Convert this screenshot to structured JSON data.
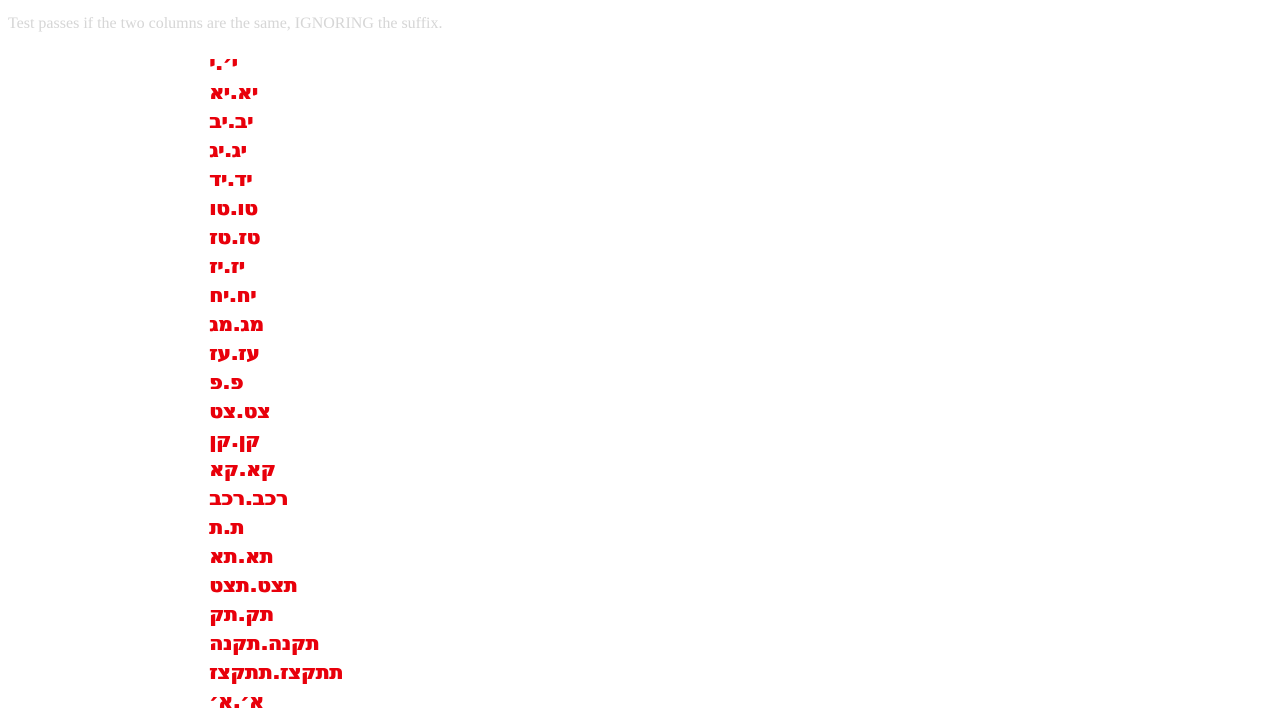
{
  "instructions": "Test passes if the two columns are the same, IGNORING the suffix.",
  "test_column": [
    "י׳.י",
    "יא.יא",
    "יב.יב",
    "יג.יג",
    "יד.יד",
    "טו.טו",
    "טז.טז",
    "יז.יז",
    "יח.יח",
    "מג.מג",
    "עז.עז",
    "פ.פ",
    "צט.צט",
    "קן.קן",
    "קא.קא",
    "רכב.רכב",
    "ת.ת",
    "תא.תא",
    "תצט.תצט",
    "תק.תק",
    "תקנה.תקנה",
    "תתקצז.תתקצז",
    "א׳.א׳"
  ],
  "reference_column": [
    "י׳.י",
    "יא.יא",
    "יב.יב",
    "יג.יג",
    "יד.יד",
    "טו.טו",
    "טז.טז",
    "יז.יז",
    "יח.יח",
    "מג.מג",
    "עז.עז",
    "פ.פ",
    "צט.צט",
    "קן.קן",
    "קא.קא",
    "רכב.רכב",
    "ת.ת",
    "תא.תא",
    "תצט.תצט",
    "תק.תק",
    "תקנה.תקנה",
    "תתקצז.תתקצז",
    "א׳.א׳"
  ]
}
